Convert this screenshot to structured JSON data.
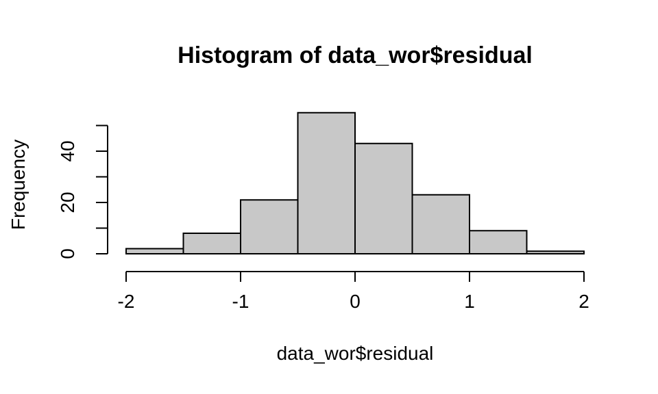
{
  "chart_data": {
    "type": "bar",
    "title": "Histogram of data_wor$residual",
    "xlabel": "data_wor$residual",
    "ylabel": "Frequency",
    "bins": [
      {
        "from": -2.0,
        "to": -1.5,
        "count": 2
      },
      {
        "from": -1.5,
        "to": -1.0,
        "count": 8
      },
      {
        "from": -1.0,
        "to": -0.5,
        "count": 21
      },
      {
        "from": -0.5,
        "to": 0.0,
        "count": 55
      },
      {
        "from": 0.0,
        "to": 0.5,
        "count": 43
      },
      {
        "from": 0.5,
        "to": 1.0,
        "count": 23
      },
      {
        "from": 1.0,
        "to": 1.5,
        "count": 9
      },
      {
        "from": 1.5,
        "to": 2.0,
        "count": 1
      }
    ],
    "xlim": [
      -2,
      2
    ],
    "x_ticks": [
      -2,
      -1,
      0,
      1,
      2
    ],
    "y_ticks": [
      0,
      10,
      20,
      30,
      40,
      50
    ],
    "y_tick_labels": [
      0,
      20,
      40
    ],
    "bar_fill": "#c8c8c8",
    "bar_stroke": "#000000",
    "grid": false,
    "legend": "none"
  }
}
